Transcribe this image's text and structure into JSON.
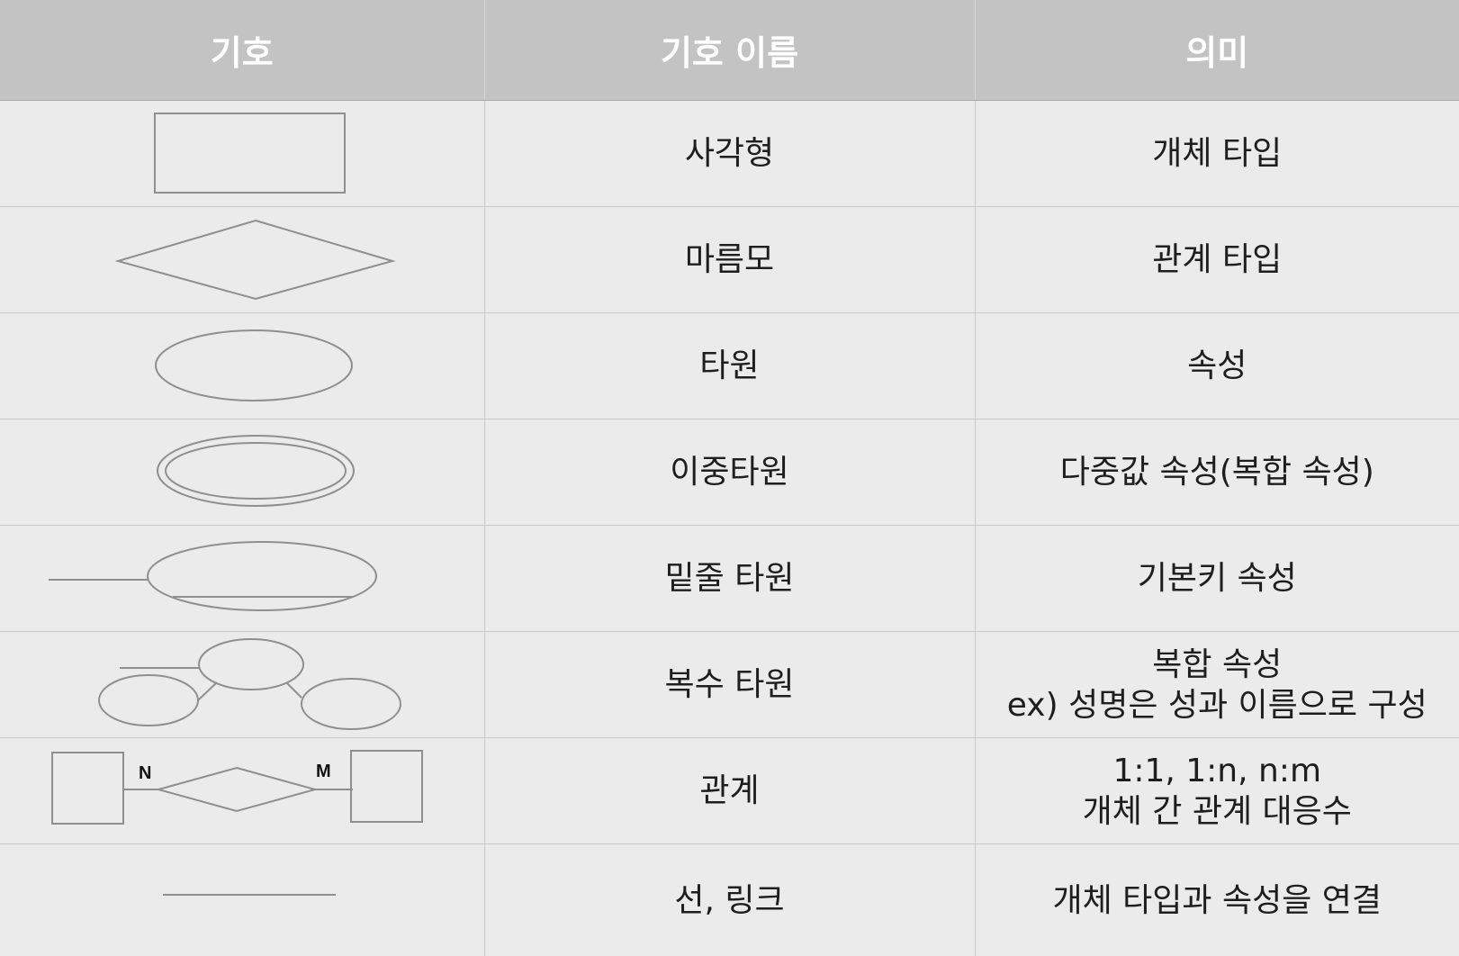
{
  "headers": {
    "symbol": "기호",
    "name": "기호 이름",
    "meaning": "의미"
  },
  "rows": [
    {
      "symbol_icon": "rectangle-icon",
      "name": "사각형",
      "meaning": [
        "개체 타입"
      ]
    },
    {
      "symbol_icon": "diamond-icon",
      "name": "마름모",
      "meaning": [
        "관계 타입"
      ]
    },
    {
      "symbol_icon": "ellipse-icon",
      "name": "타원",
      "meaning": [
        "속성"
      ]
    },
    {
      "symbol_icon": "double-ellipse-icon",
      "name": "이중타원",
      "meaning": [
        "다중값 속성(복합 속성)"
      ]
    },
    {
      "symbol_icon": "underlined-ellipse-icon",
      "name": "밑줄 타원",
      "meaning": [
        "기본키 속성"
      ]
    },
    {
      "symbol_icon": "composite-ellipses-icon",
      "name": "복수 타원",
      "meaning": [
        "복합 속성",
        "ex) 성명은 성과 이름으로 구성"
      ]
    },
    {
      "symbol_icon": "relationship-icon",
      "name": "관계",
      "meaning": [
        "1:1, 1:n, n:m",
        "개체 간 관계 대응수"
      ],
      "labels": {
        "left": "N",
        "right": "M"
      }
    },
    {
      "symbol_icon": "line-icon",
      "name": "선, 링크",
      "meaning": [
        "개체 타입과 속성을 연결"
      ]
    }
  ],
  "colors": {
    "header_bg": "#c3c3c3",
    "header_text": "#ffffff",
    "row_bg": "#ebebeb",
    "stroke": "#8f8f8f",
    "text": "#1e1e1e"
  }
}
